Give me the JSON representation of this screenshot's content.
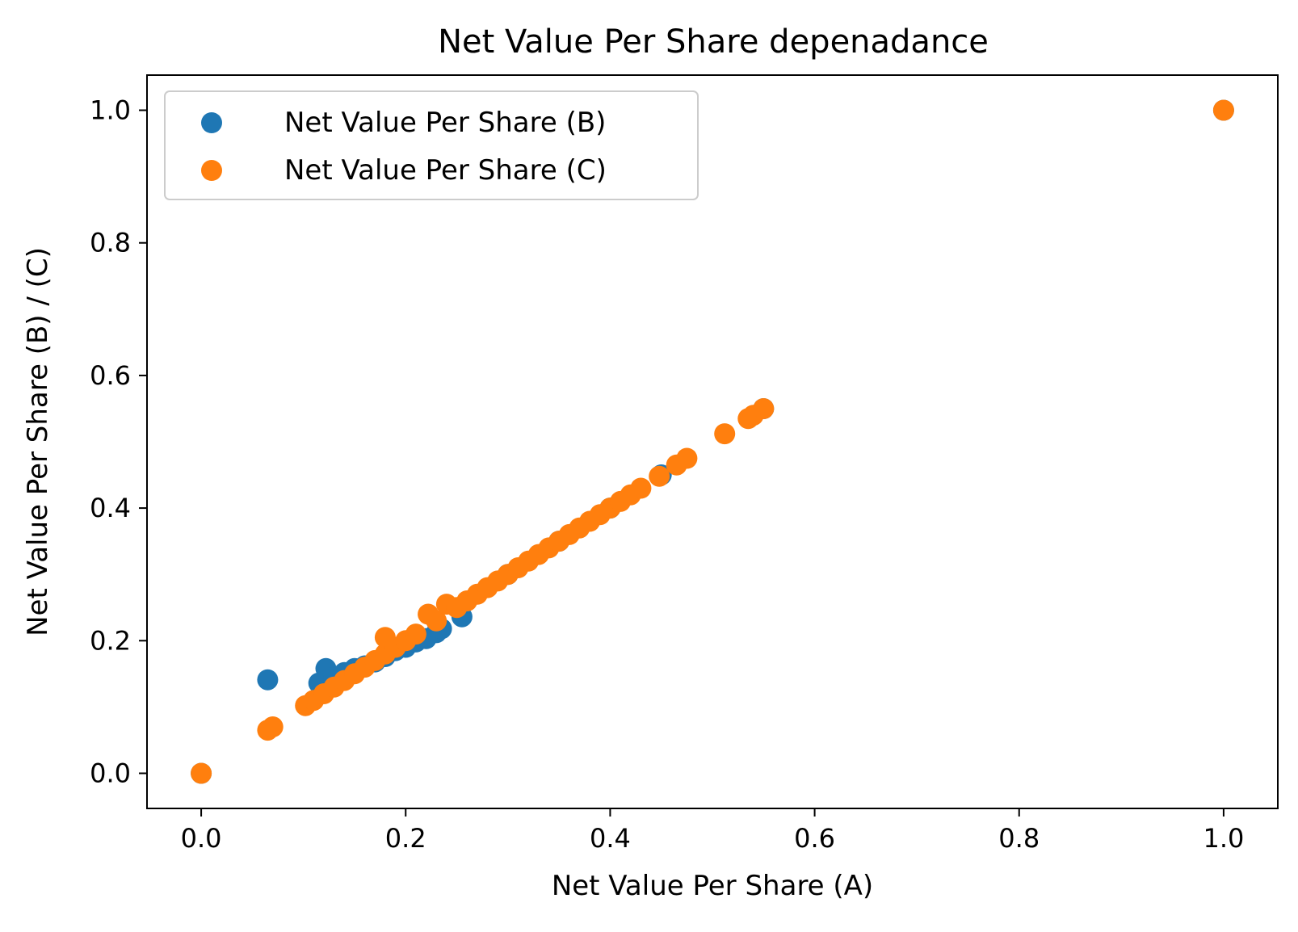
{
  "chart_data": {
    "type": "scatter",
    "title": "Net Value Per Share depenadance",
    "xlabel": "Net Value Per Share (A)",
    "ylabel": "Net Value Per Share (B) / (C)",
    "xlim": [
      -0.053,
      1.053
    ],
    "ylim": [
      -0.053,
      1.053
    ],
    "xticks": [
      0.0,
      0.2,
      0.4,
      0.6,
      0.8,
      1.0
    ],
    "xtick_labels": [
      "0.0",
      "0.2",
      "0.4",
      "0.6",
      "0.8",
      "1.0"
    ],
    "yticks": [
      0.0,
      0.2,
      0.4,
      0.6,
      0.8,
      1.0
    ],
    "ytick_labels": [
      "0.0",
      "0.2",
      "0.4",
      "0.6",
      "0.8",
      "1.0"
    ],
    "grid": false,
    "legend_position": "upper-left",
    "series": [
      {
        "name": "Net Value Per Share (B)",
        "color": "#1f77b4",
        "points": [
          [
            0.0,
            0.0
          ],
          [
            0.065,
            0.141
          ],
          [
            0.115,
            0.136
          ],
          [
            0.122,
            0.158
          ],
          [
            0.13,
            0.145
          ],
          [
            0.14,
            0.152
          ],
          [
            0.15,
            0.158
          ],
          [
            0.16,
            0.162
          ],
          [
            0.17,
            0.168
          ],
          [
            0.18,
            0.176
          ],
          [
            0.19,
            0.185
          ],
          [
            0.2,
            0.19
          ],
          [
            0.21,
            0.198
          ],
          [
            0.22,
            0.203
          ],
          [
            0.23,
            0.212
          ],
          [
            0.235,
            0.218
          ],
          [
            0.255,
            0.236
          ],
          [
            0.3,
            0.3
          ],
          [
            0.35,
            0.35
          ],
          [
            0.4,
            0.4
          ],
          [
            0.45,
            0.45
          ],
          [
            0.55,
            0.55
          ],
          [
            1.0,
            1.0
          ]
        ]
      },
      {
        "name": "Net Value Per Share (C)",
        "color": "#ff7f0e",
        "points": [
          [
            0.0,
            0.0
          ],
          [
            0.065,
            0.065
          ],
          [
            0.07,
            0.07
          ],
          [
            0.102,
            0.102
          ],
          [
            0.11,
            0.11
          ],
          [
            0.12,
            0.12
          ],
          [
            0.13,
            0.13
          ],
          [
            0.14,
            0.14
          ],
          [
            0.15,
            0.15
          ],
          [
            0.16,
            0.16
          ],
          [
            0.17,
            0.17
          ],
          [
            0.18,
            0.18
          ],
          [
            0.18,
            0.205
          ],
          [
            0.19,
            0.19
          ],
          [
            0.2,
            0.2
          ],
          [
            0.21,
            0.21
          ],
          [
            0.222,
            0.24
          ],
          [
            0.23,
            0.23
          ],
          [
            0.24,
            0.255
          ],
          [
            0.25,
            0.25
          ],
          [
            0.26,
            0.26
          ],
          [
            0.27,
            0.27
          ],
          [
            0.28,
            0.28
          ],
          [
            0.29,
            0.29
          ],
          [
            0.3,
            0.3
          ],
          [
            0.31,
            0.31
          ],
          [
            0.32,
            0.32
          ],
          [
            0.33,
            0.33
          ],
          [
            0.34,
            0.34
          ],
          [
            0.35,
            0.35
          ],
          [
            0.36,
            0.36
          ],
          [
            0.37,
            0.37
          ],
          [
            0.38,
            0.38
          ],
          [
            0.39,
            0.39
          ],
          [
            0.4,
            0.4
          ],
          [
            0.41,
            0.41
          ],
          [
            0.42,
            0.42
          ],
          [
            0.43,
            0.43
          ],
          [
            0.448,
            0.448
          ],
          [
            0.465,
            0.465
          ],
          [
            0.475,
            0.475
          ],
          [
            0.512,
            0.512
          ],
          [
            0.535,
            0.535
          ],
          [
            0.54,
            0.54
          ],
          [
            0.55,
            0.55
          ],
          [
            1.0,
            1.0
          ]
        ]
      }
    ]
  }
}
